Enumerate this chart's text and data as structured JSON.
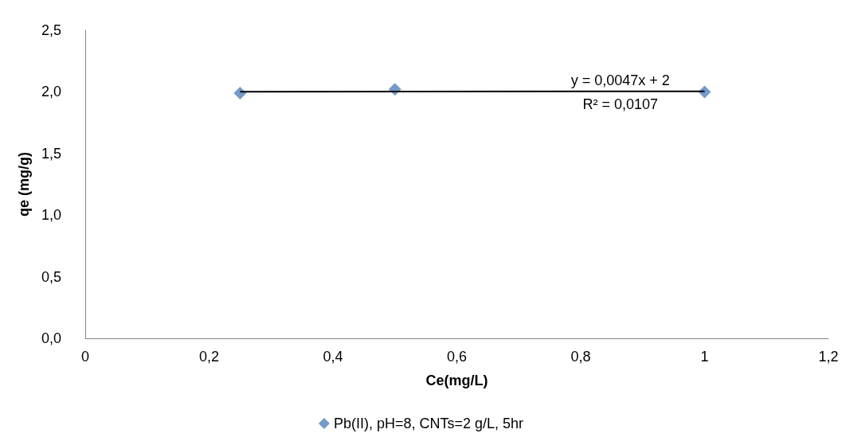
{
  "chart_data": {
    "type": "scatter",
    "xlabel": "Ce(mg/L)",
    "ylabel": "qe (mg/g)",
    "x": [
      0.25,
      0.5,
      1
    ],
    "series": [
      {
        "name": "Pb(II), pH=8, CNTs=2 g/L, 5hr",
        "color": "#4f81bd",
        "marker": "diamond",
        "values": [
          1.99,
          2.02,
          2.0
        ]
      },
      {
        "type": "line",
        "color": "#000000",
        "marker": "none",
        "x": [
          0.25,
          1
        ],
        "values": [
          2.001,
          2.005
        ]
      }
    ],
    "annotations": [
      "y = 0,0047x + 2",
      "R² = 0,0107"
    ],
    "xlim": [
      0,
      1.2
    ],
    "xticks": [
      0,
      {
        "value": 0.2,
        "label": "0,2"
      },
      {
        "value": 0.4,
        "label": "0,4"
      },
      {
        "value": 0.6,
        "label": "0,6"
      },
      {
        "value": 0.8,
        "label": "0,8"
      },
      1,
      {
        "value": 1.2,
        "label": "1,2"
      }
    ],
    "ylim": [
      0,
      2.5
    ],
    "yticks": [
      {
        "value": 0,
        "label": "0,0"
      },
      {
        "value": 0.5,
        "label": "0,5"
      },
      {
        "value": 1,
        "label": "1,0"
      },
      {
        "value": 1.5,
        "label": "1,5"
      },
      {
        "value": 2,
        "label": "2,0"
      },
      {
        "value": 2.5,
        "label": "2,5"
      }
    ],
    "legend": "bottom",
    "grid": false
  }
}
